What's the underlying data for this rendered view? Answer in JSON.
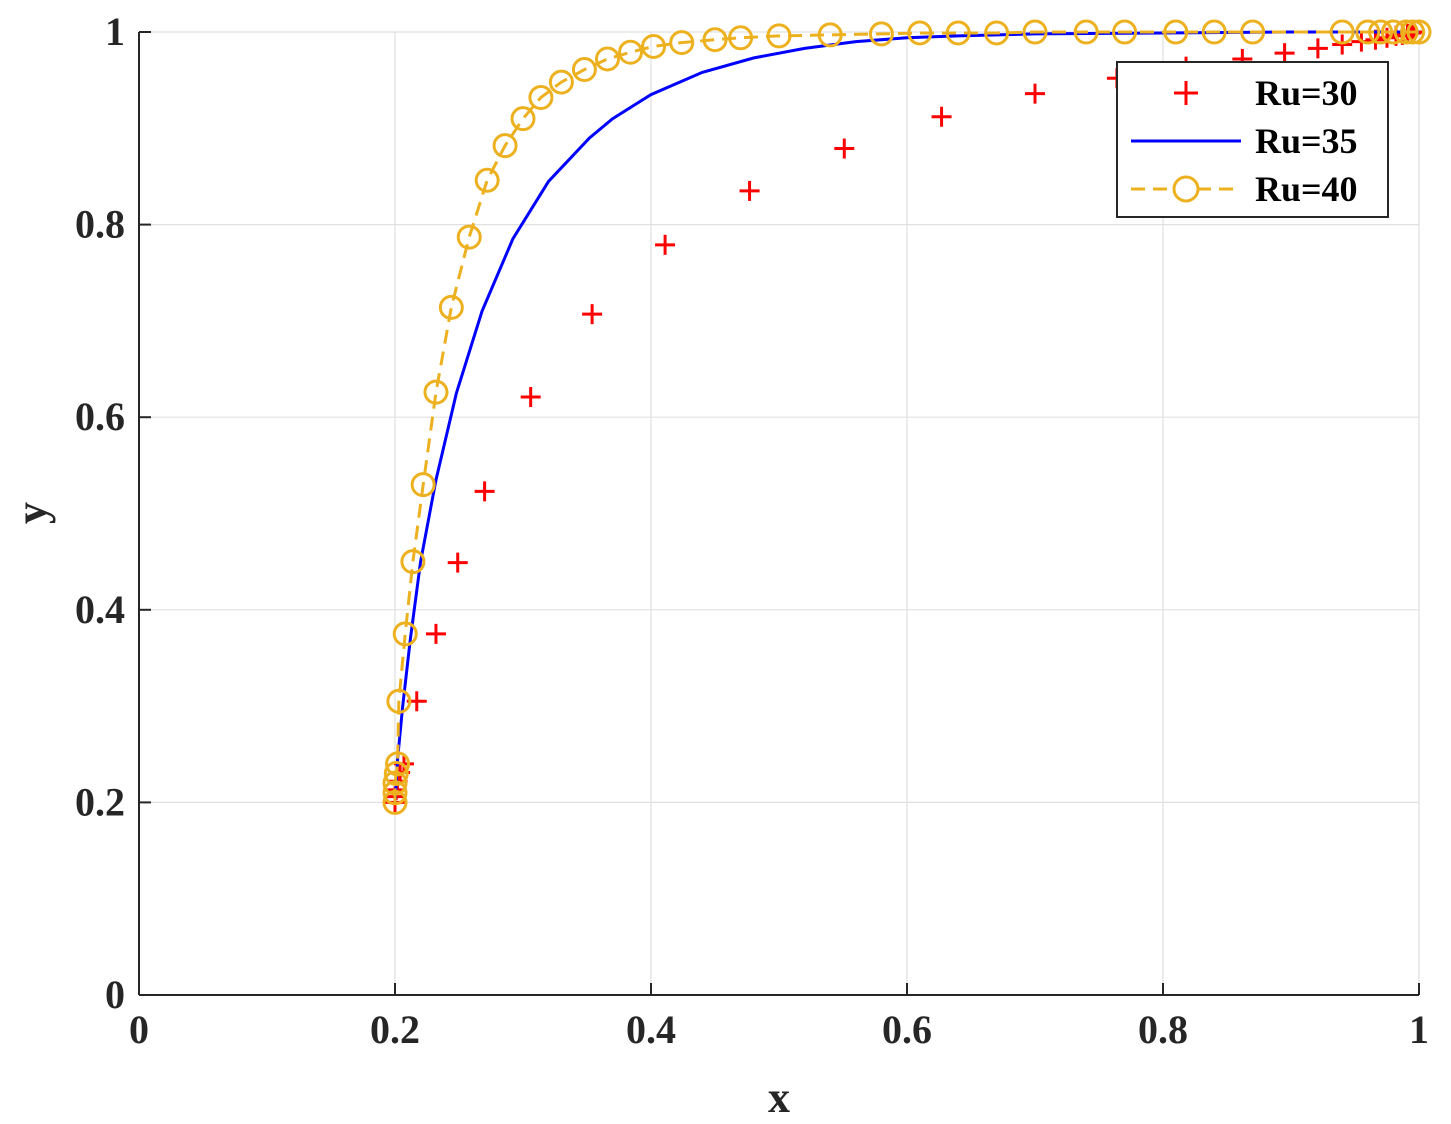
{
  "chart_data": {
    "type": "line",
    "title": "",
    "xlabel": "x",
    "ylabel": "y",
    "xlim": [
      0,
      1
    ],
    "ylim": [
      0,
      1
    ],
    "grid": true,
    "legend_position": "top-right",
    "xticks": [
      0,
      0.2,
      0.4,
      0.6,
      0.8,
      1
    ],
    "xtick_labels": [
      "0",
      "0.2",
      "0.4",
      "0.6",
      "0.8",
      "1"
    ],
    "yticks": [
      0,
      0.2,
      0.4,
      0.6,
      0.8,
      1
    ],
    "ytick_labels": [
      "0",
      "0.2",
      "0.4",
      "0.6",
      "0.8",
      "1"
    ],
    "series": [
      {
        "name": "Ru=30",
        "style": "marker-plus",
        "color": "#ff0000",
        "x": [
          0.2,
          0.2,
          0.201,
          0.202,
          0.204,
          0.207,
          0.217,
          0.232,
          0.249,
          0.27,
          0.306,
          0.354,
          0.411,
          0.477,
          0.551,
          0.627,
          0.7,
          0.764,
          0.818,
          0.862,
          0.895,
          0.921,
          0.94,
          0.955,
          0.966,
          0.975,
          0.982,
          0.987,
          0.991,
          0.994,
          0.996
        ],
        "y": [
          0.2,
          0.206,
          0.213,
          0.222,
          0.231,
          0.24,
          0.305,
          0.375,
          0.449,
          0.523,
          0.621,
          0.707,
          0.779,
          0.835,
          0.879,
          0.912,
          0.936,
          0.952,
          0.964,
          0.972,
          0.978,
          0.983,
          0.987,
          0.99,
          0.992,
          0.994,
          0.996,
          0.997,
          0.998,
          0.999,
          1.0
        ]
      },
      {
        "name": "Ru=35",
        "style": "solid-line",
        "color": "#0000ff",
        "x": [
          0.2,
          0.202,
          0.206,
          0.212,
          0.22,
          0.232,
          0.248,
          0.268,
          0.292,
          0.32,
          0.352,
          0.37,
          0.4,
          0.44,
          0.48,
          0.52,
          0.56,
          0.6,
          0.64,
          0.7,
          0.8,
          0.9,
          1.0
        ],
        "y": [
          0.2,
          0.245,
          0.3,
          0.37,
          0.45,
          0.535,
          0.625,
          0.71,
          0.785,
          0.845,
          0.89,
          0.91,
          0.935,
          0.958,
          0.973,
          0.983,
          0.99,
          0.994,
          0.996,
          0.998,
          0.999,
          1.0,
          1.0
        ]
      },
      {
        "name": "Ru=40",
        "style": "dashed-line-circle",
        "color": "#edb120",
        "x": [
          0.2,
          0.2,
          0.2,
          0.201,
          0.202,
          0.203,
          0.208,
          0.214,
          0.222,
          0.232,
          0.244,
          0.258,
          0.272,
          0.286,
          0.3,
          0.314,
          0.33,
          0.348,
          0.366,
          0.384,
          0.402,
          0.424,
          0.45,
          0.47,
          0.5,
          0.54,
          0.58,
          0.61,
          0.64,
          0.67,
          0.7,
          0.74,
          0.77,
          0.81,
          0.84,
          0.87,
          0.94,
          0.96,
          0.97,
          0.98,
          0.99,
          0.995,
          1.0
        ],
        "y": [
          0.2,
          0.21,
          0.22,
          0.23,
          0.24,
          0.305,
          0.375,
          0.45,
          0.53,
          0.626,
          0.714,
          0.787,
          0.846,
          0.882,
          0.91,
          0.932,
          0.948,
          0.961,
          0.972,
          0.979,
          0.985,
          0.989,
          0.992,
          0.994,
          0.996,
          0.997,
          0.998,
          0.999,
          0.999,
          0.999,
          1.0,
          1.0,
          1.0,
          1.0,
          1.0,
          1.0,
          1.0,
          1.0,
          1.0,
          1.0,
          1.0,
          1.0,
          1.0
        ]
      }
    ]
  },
  "colors": {
    "axis": "#262626",
    "grid": "#e0e0e0",
    "legend_border": "#262626"
  }
}
